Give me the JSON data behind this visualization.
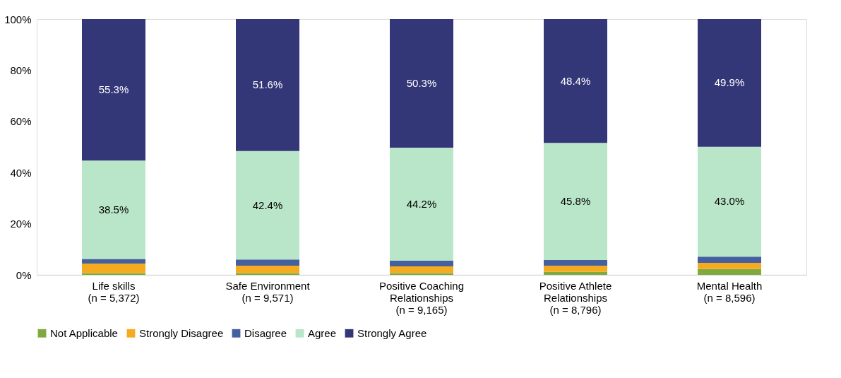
{
  "chart_data": {
    "type": "bar",
    "stacked": true,
    "categories": [
      "Life skills\n(n = 5,372)",
      "Safe Environment\n(n = 9,571)",
      "Positive Coaching\nRelationships\n(n = 9,165)",
      "Positive Athlete\nRelationships\n(n = 8,796)",
      "Mental Health\n(n = 8,596)"
    ],
    "series": [
      {
        "name": "Not Applicable",
        "color": "#7faa3f",
        "values": [
          0.6,
          0.6,
          0.7,
          1.2,
          2.3
        ]
      },
      {
        "name": "Strongly Disagree",
        "color": "#f5ab1f",
        "values": [
          3.8,
          3.0,
          2.6,
          2.4,
          2.4
        ]
      },
      {
        "name": "Disagree",
        "color": "#44609f",
        "values": [
          1.8,
          2.4,
          2.2,
          2.2,
          2.4
        ]
      },
      {
        "name": "Agree",
        "color": "#b9e6c9",
        "values": [
          38.5,
          42.4,
          44.2,
          45.8,
          43.0
        ],
        "value_labels": [
          "38.5%",
          "42.4%",
          "44.2%",
          "45.8%",
          "43.0%"
        ]
      },
      {
        "name": "Strongly Agree",
        "color": "#333677",
        "values": [
          55.3,
          51.6,
          50.3,
          48.4,
          49.9
        ],
        "value_labels": [
          "55.3%",
          "51.6%",
          "50.3%",
          "48.4%",
          "49.9%"
        ]
      }
    ],
    "ylim": [
      0,
      100
    ],
    "yticks": [
      {
        "value": 0,
        "label": "0%"
      },
      {
        "value": 20,
        "label": "20%"
      },
      {
        "value": 40,
        "label": "40%"
      },
      {
        "value": 60,
        "label": "60%"
      },
      {
        "value": 80,
        "label": "80%"
      },
      {
        "value": 100,
        "label": "100%"
      }
    ],
    "grid": false,
    "legend": "bottom"
  }
}
